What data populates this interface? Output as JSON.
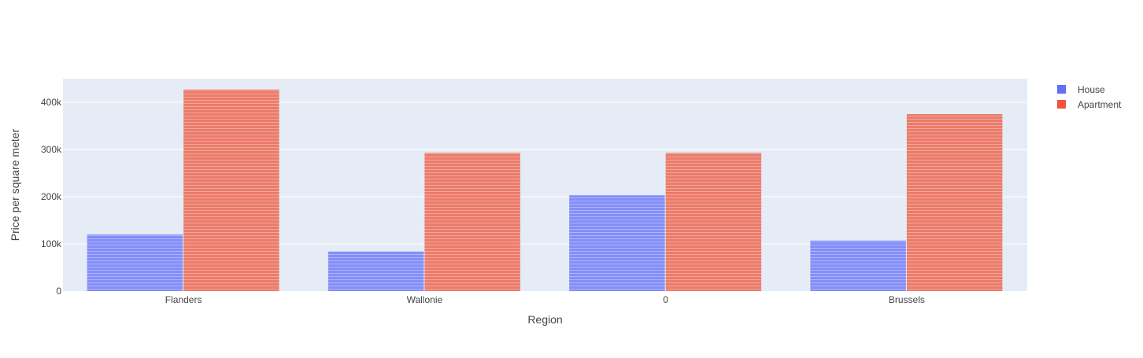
{
  "chart_data": {
    "type": "bar",
    "title": "",
    "xlabel": "Region",
    "ylabel": "Price per square meter",
    "categories": [
      "Flanders",
      "Wallonie",
      "0",
      "Brussels"
    ],
    "ylim": [
      0,
      450000
    ],
    "yticks": [
      0,
      100000,
      200000,
      300000,
      400000
    ],
    "ytick_labels": [
      "0",
      "100k",
      "200k",
      "300k",
      "400k"
    ],
    "grid": true,
    "barmode": "group",
    "legend_position": "top-right",
    "series": [
      {
        "name": "House",
        "color": "#636efa",
        "values": [
          120000,
          84000,
          203000,
          107000
        ]
      },
      {
        "name": "Apartment",
        "color": "#ef553b",
        "values": [
          427000,
          293000,
          293000,
          375000
        ]
      }
    ],
    "plot_background": "#e5ecf6"
  }
}
